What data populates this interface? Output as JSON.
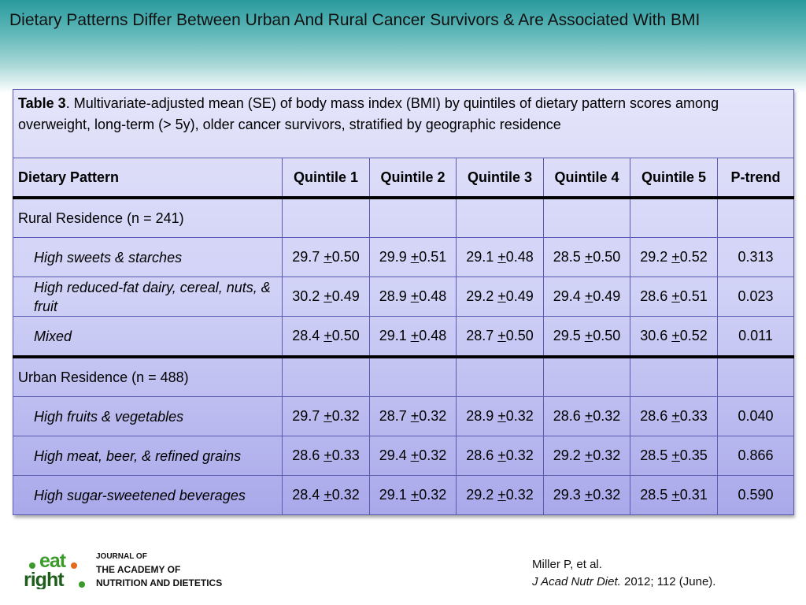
{
  "slide": {
    "title": "Dietary Patterns Differ Between Urban And Rural Cancer Survivors & Are Associated With BMI"
  },
  "table": {
    "caption_bold": "Table 3",
    "caption_text": ". Multivariate-adjusted mean (SE) of body mass index (BMI) by quintiles of dietary pattern scores among overweight, long-term (> 5y), older cancer survivors, stratified by geographic residence",
    "headers": [
      "Dietary Pattern",
      "Quintile 1",
      "Quintile 2",
      "Quintile 3",
      "Quintile 4",
      "Quintile 5",
      "P-trend"
    ],
    "pm_symbol": "+",
    "groups": [
      {
        "label": "Rural Residence (n = 241)",
        "rows": [
          {
            "pattern": "High sweets & starches",
            "q": [
              [
                "29.7",
                "0.50"
              ],
              [
                "29.9",
                "0.51"
              ],
              [
                "29.1",
                "0.48"
              ],
              [
                "28.5",
                "0.50"
              ],
              [
                "29.2",
                "0.52"
              ]
            ],
            "p_trend": "0.313"
          },
          {
            "pattern": "High reduced-fat dairy, cereal, nuts, & fruit",
            "q": [
              [
                "30.2",
                "0.49"
              ],
              [
                "28.9",
                "0.48"
              ],
              [
                "29.2",
                "0.49"
              ],
              [
                "29.4",
                "0.49"
              ],
              [
                "28.6",
                "0.51"
              ]
            ],
            "p_trend": "0.023"
          },
          {
            "pattern": "Mixed",
            "q": [
              [
                "28.4",
                "0.50"
              ],
              [
                "29.1",
                "0.48"
              ],
              [
                "28.7",
                "0.50"
              ],
              [
                "29.5",
                "0.50"
              ],
              [
                "30.6",
                "0.52"
              ]
            ],
            "p_trend": "0.011"
          }
        ]
      },
      {
        "label": "Urban Residence (n = 488)",
        "rows": [
          {
            "pattern": "High fruits & vegetables",
            "q": [
              [
                "29.7",
                "0.32"
              ],
              [
                "28.7",
                "0.32"
              ],
              [
                "28.9",
                "0.32"
              ],
              [
                "28.6",
                "0.32"
              ],
              [
                "28.6",
                "0.33"
              ]
            ],
            "p_trend": "0.040"
          },
          {
            "pattern": "High meat, beer, & refined grains",
            "q": [
              [
                "28.6",
                "0.33"
              ],
              [
                "29.4",
                "0.32"
              ],
              [
                "28.6",
                "0.32"
              ],
              [
                "29.2",
                "0.32"
              ],
              [
                "28.5",
                "0.35"
              ]
            ],
            "p_trend": "0.866"
          },
          {
            "pattern": "High sugar-sweetened beverages",
            "q": [
              [
                "28.4",
                "0.32"
              ],
              [
                "29.1",
                "0.32"
              ],
              [
                "29.2",
                "0.32"
              ],
              [
                "29.3",
                "0.32"
              ],
              [
                "28.5",
                "0.31"
              ]
            ],
            "p_trend": "0.590"
          }
        ]
      }
    ]
  },
  "footer": {
    "logo_text": "eat right.",
    "journal_line1": "JOURNAL OF",
    "journal_line2": "THE ACADEMY OF",
    "journal_line3": "NUTRITION AND DIETETICS",
    "citation_authors": "Miller P, et al.",
    "citation_journal": "J Acad Nutr Diet.",
    "citation_rest": " 2012; 112 (June)."
  },
  "colors": {
    "header_teal": "#2a9a9e",
    "table_light": "#e4e4fa",
    "table_dark": "#a9a8ea",
    "logo_green": "#3a9a2a",
    "logo_dark": "#1f5e1a",
    "logo_orange": "#e36a1c"
  },
  "icons": {
    "logo": "eat-right-logo"
  }
}
